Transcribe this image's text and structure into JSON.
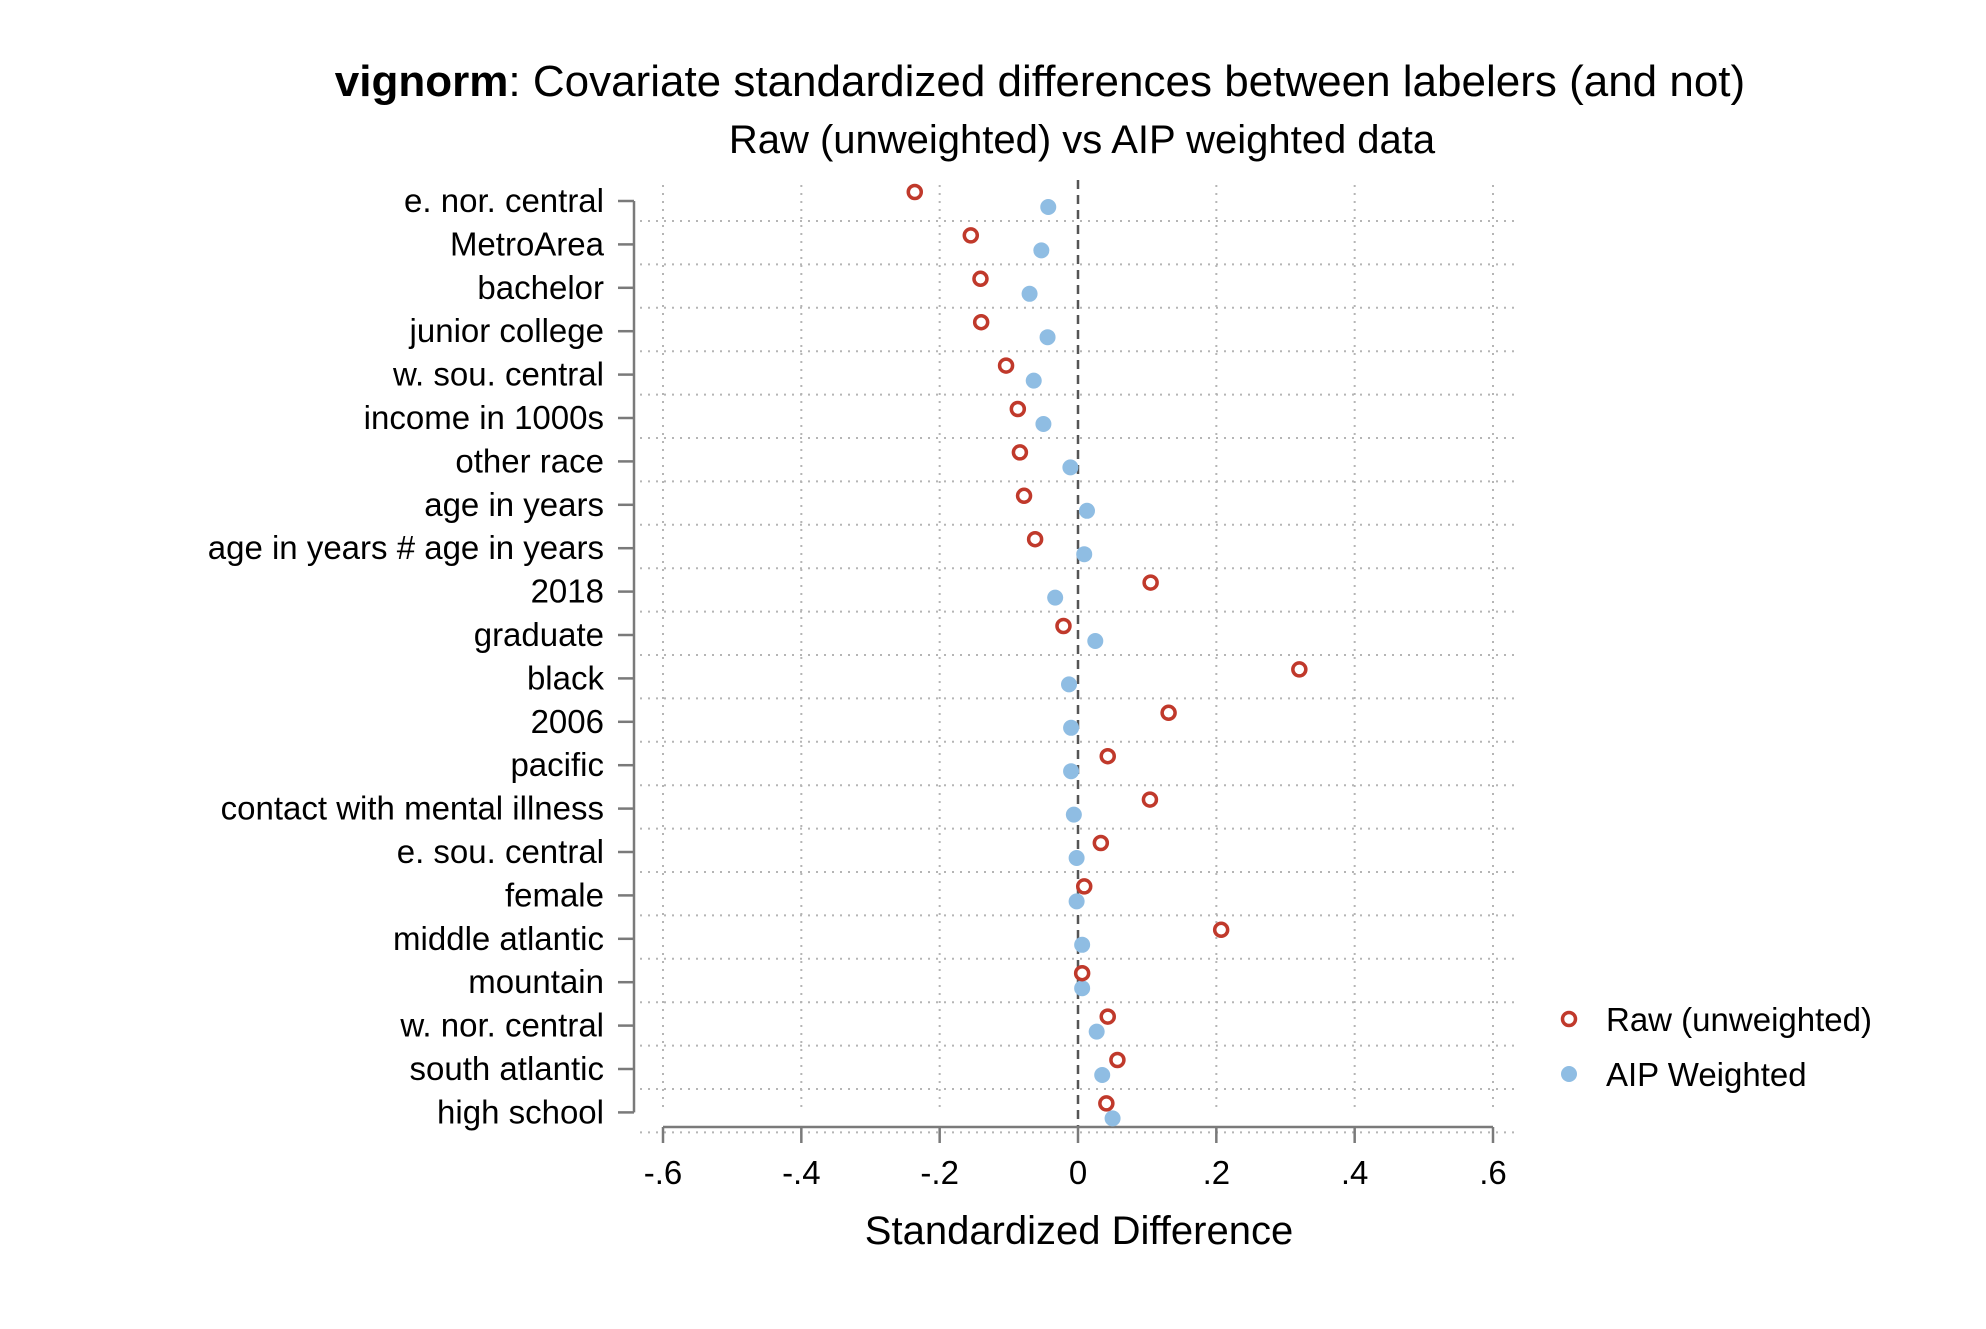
{
  "chart_data": {
    "type": "scatter",
    "title_bold": "vignorm",
    "title_rest": ": Covariate standardized differences between labelers (and not)",
    "subtitle": "Raw (unweighted) vs AIP weighted data",
    "xlabel": "Standardized Difference",
    "ylabel": "",
    "xlim": [
      -0.6,
      0.6
    ],
    "x_ticks": [
      -0.6,
      -0.4,
      -0.2,
      0,
      0.2,
      0.4,
      0.6
    ],
    "x_tick_labels": [
      "-.6",
      "-.4",
      "-.2",
      "0",
      ".2",
      ".4",
      ".6"
    ],
    "reference_line": 0,
    "grid": true,
    "legend_position": "right",
    "categories": [
      "e. nor. central",
      "MetroArea",
      "bachelor",
      "junior college",
      "w. sou. central",
      "income in 1000s",
      "other race",
      "age in years",
      "age in years # age in years",
      "2018",
      "graduate",
      "black",
      "2006",
      "pacific",
      "contact with mental illness",
      "e. sou. central",
      "female",
      "middle atlantic",
      "mountain",
      "w. nor. central",
      "south atlantic",
      "high school"
    ],
    "series": [
      {
        "name": "Raw (unweighted)",
        "marker": "hollow-circle",
        "color": "#c0392b",
        "values": [
          -0.236,
          -0.155,
          -0.141,
          -0.14,
          -0.104,
          -0.087,
          -0.084,
          -0.078,
          -0.062,
          0.105,
          -0.021,
          0.32,
          0.131,
          0.043,
          0.104,
          0.033,
          0.009,
          0.207,
          0.006,
          0.043,
          0.057,
          0.041
        ]
      },
      {
        "name": "AIP Weighted",
        "marker": "filled-circle",
        "color": "#8fbde3",
        "values": [
          -0.043,
          -0.053,
          -0.07,
          -0.044,
          -0.064,
          -0.05,
          -0.011,
          0.013,
          0.009,
          -0.033,
          0.025,
          -0.013,
          -0.01,
          -0.01,
          -0.006,
          -0.002,
          -0.002,
          0.006,
          0.006,
          0.027,
          0.035,
          0.05
        ]
      }
    ]
  }
}
